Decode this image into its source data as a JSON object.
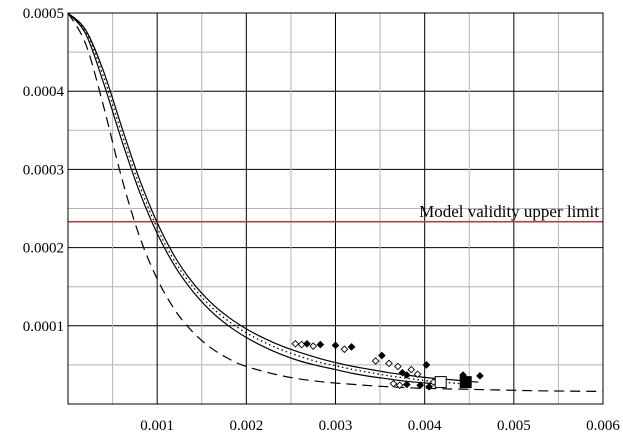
{
  "chart_data": {
    "type": "line",
    "title": "",
    "xlabel": "",
    "ylabel": "",
    "xlim": [
      0,
      0.006
    ],
    "ylim": [
      0,
      0.0005
    ],
    "x_ticks": [
      {
        "value": 0.001,
        "label": "0.001"
      },
      {
        "value": 0.002,
        "label": "0.002"
      },
      {
        "value": 0.003,
        "label": "0.003"
      },
      {
        "value": 0.004,
        "label": "0.004"
      },
      {
        "value": 0.005,
        "label": "0.005"
      },
      {
        "value": 0.006,
        "label": "0.006"
      }
    ],
    "y_ticks": [
      {
        "value": 0.0001,
        "label": "0.0001"
      },
      {
        "value": 0.0002,
        "label": "0.0002"
      },
      {
        "value": 0.0003,
        "label": "0.0003"
      },
      {
        "value": 0.0004,
        "label": "0.0004"
      },
      {
        "value": 0.0005,
        "label": "0.0005"
      }
    ],
    "grid": true,
    "reference_line": {
      "y": 0.000233,
      "label": "Model validity upper limit",
      "color": "#cc3333"
    },
    "series": [
      {
        "style": "solid",
        "x": [
          0.0,
          0.0002,
          0.0004,
          0.0006,
          0.0008,
          0.001,
          0.0012,
          0.0014,
          0.0016,
          0.0018,
          0.002,
          0.0022,
          0.0024,
          0.0026,
          0.0028,
          0.003,
          0.0032,
          0.0034,
          0.0036,
          0.0038,
          0.004,
          0.0042,
          0.0044,
          0.0046
        ],
        "y": [
          0.0005,
          0.000478,
          0.000425,
          0.000355,
          0.000288,
          0.000232,
          0.000188,
          0.000155,
          0.00013,
          0.000111,
          9.6e-05,
          8.4e-05,
          7.4e-05,
          6.6e-05,
          5.9e-05,
          5.3e-05,
          4.8e-05,
          4.4e-05,
          4e-05,
          3.7e-05,
          3.4e-05,
          3.2e-05,
          3e-05,
          2.8e-05
        ]
      },
      {
        "style": "dotted",
        "x": [
          0.0,
          0.0002,
          0.0004,
          0.0006,
          0.0008,
          0.001,
          0.0012,
          0.0014,
          0.0016,
          0.0018,
          0.002,
          0.0022,
          0.0024,
          0.0026,
          0.0028,
          0.003,
          0.0032,
          0.0034,
          0.0036,
          0.0038,
          0.004,
          0.0042,
          0.0044
        ],
        "y": [
          0.0005,
          0.000476,
          0.000418,
          0.000347,
          0.00028,
          0.000225,
          0.000182,
          0.00015,
          0.000125,
          0.000106,
          9.1e-05,
          7.9e-05,
          6.9e-05,
          6.1e-05,
          5.4e-05,
          4.9e-05,
          4.4e-05,
          4e-05,
          3.6e-05,
          3.3e-05,
          3e-05,
          2.8e-05,
          2.6e-05
        ]
      },
      {
        "style": "solid",
        "x": [
          0.0,
          0.0002,
          0.0004,
          0.0006,
          0.0008,
          0.001,
          0.0012,
          0.0014,
          0.0016,
          0.0018,
          0.002,
          0.0022,
          0.0024,
          0.0026,
          0.0028,
          0.003,
          0.0032,
          0.0034,
          0.0036,
          0.0038,
          0.004,
          0.0042
        ],
        "y": [
          0.0005,
          0.000473,
          0.00041,
          0.000338,
          0.000272,
          0.000218,
          0.000176,
          0.000144,
          0.000119,
          0.0001,
          8.5e-05,
          7.3e-05,
          6.3e-05,
          5.5e-05,
          4.9e-05,
          4.4e-05,
          3.9e-05,
          3.5e-05,
          3.2e-05,
          2.9e-05,
          2.7e-05,
          2.5e-05
        ]
      },
      {
        "style": "dashed",
        "x": [
          0.0,
          0.0002,
          0.0004,
          0.0006,
          0.0008,
          0.001,
          0.0012,
          0.0014,
          0.0016,
          0.0018,
          0.002,
          0.0024,
          0.0028,
          0.0032,
          0.0036,
          0.004,
          0.0044,
          0.0048,
          0.0052,
          0.0056,
          0.006
        ],
        "y": [
          0.0005,
          0.00046,
          0.00038,
          0.00029,
          0.000215,
          0.00016,
          0.00012,
          9.2e-05,
          7.2e-05,
          5.8e-05,
          4.8e-05,
          3.6e-05,
          2.9e-05,
          2.5e-05,
          2.2e-05,
          2e-05,
          1.9e-05,
          1.8e-05,
          1.7e-05,
          1.65e-05,
          1.6e-05
        ]
      }
    ],
    "markers": [
      {
        "shape": "diamond",
        "filled": false,
        "x": 0.00255,
        "y": 7.7e-05
      },
      {
        "shape": "diamond",
        "filled": false,
        "x": 0.00262,
        "y": 7.6e-05
      },
      {
        "shape": "diamond",
        "filled": true,
        "x": 0.00268,
        "y": 7.7e-05
      },
      {
        "shape": "diamond",
        "filled": false,
        "x": 0.00275,
        "y": 7.4e-05
      },
      {
        "shape": "diamond",
        "filled": true,
        "x": 0.00283,
        "y": 7.6e-05
      },
      {
        "shape": "diamond",
        "filled": true,
        "x": 0.003,
        "y": 7.5e-05
      },
      {
        "shape": "diamond",
        "filled": false,
        "x": 0.0031,
        "y": 7e-05
      },
      {
        "shape": "diamond",
        "filled": true,
        "x": 0.00318,
        "y": 7.3e-05
      },
      {
        "shape": "diamond",
        "filled": true,
        "x": 0.00352,
        "y": 6.2e-05
      },
      {
        "shape": "diamond",
        "filled": false,
        "x": 0.00345,
        "y": 5.5e-05
      },
      {
        "shape": "diamond",
        "filled": false,
        "x": 0.0036,
        "y": 5.2e-05
      },
      {
        "shape": "diamond",
        "filled": false,
        "x": 0.0037,
        "y": 4.8e-05
      },
      {
        "shape": "diamond",
        "filled": true,
        "x": 0.00375,
        "y": 4e-05
      },
      {
        "shape": "diamond",
        "filled": false,
        "x": 0.00385,
        "y": 4.4e-05
      },
      {
        "shape": "diamond",
        "filled": true,
        "x": 0.0038,
        "y": 3.7e-05
      },
      {
        "shape": "diamond",
        "filled": false,
        "x": 0.00392,
        "y": 3.8e-05
      },
      {
        "shape": "diamond",
        "filled": true,
        "x": 0.00402,
        "y": 5e-05
      },
      {
        "shape": "diamond",
        "filled": false,
        "x": 0.00365,
        "y": 2.6e-05
      },
      {
        "shape": "diamond",
        "filled": false,
        "x": 0.00372,
        "y": 2.4e-05
      },
      {
        "shape": "diamond",
        "filled": true,
        "x": 0.0038,
        "y": 2.5e-05
      },
      {
        "shape": "diamond",
        "filled": true,
        "x": 0.00395,
        "y": 2.4e-05
      },
      {
        "shape": "diamond",
        "filled": false,
        "x": 0.0041,
        "y": 2.8e-05
      },
      {
        "shape": "diamond",
        "filled": true,
        "x": 0.00405,
        "y": 2.2e-05
      },
      {
        "shape": "diamond",
        "filled": true,
        "x": 0.00443,
        "y": 3.7e-05
      },
      {
        "shape": "diamond",
        "filled": true,
        "x": 0.00462,
        "y": 3.6e-05
      },
      {
        "shape": "square",
        "filled": false,
        "x": 0.00418,
        "y": 2.8e-05
      },
      {
        "shape": "square",
        "filled": true,
        "x": 0.00446,
        "y": 2.8e-05
      }
    ]
  }
}
